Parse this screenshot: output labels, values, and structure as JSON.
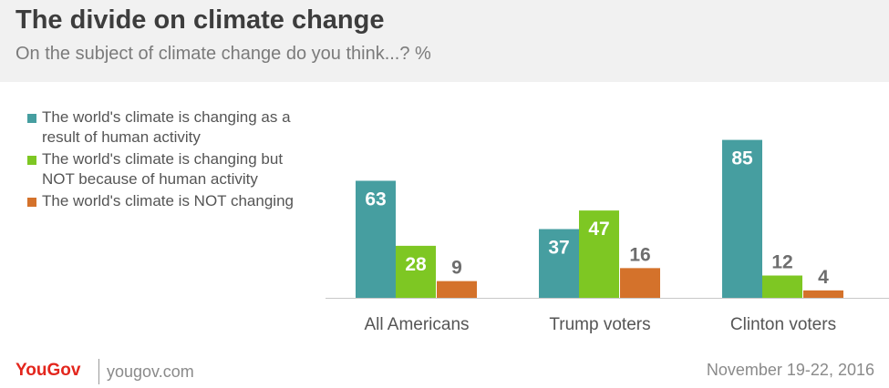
{
  "header": {
    "title": "The divide on climate change",
    "subtitle": "On the subject of climate change do you think...? %"
  },
  "footer": {
    "logo": "YouGov",
    "url": "yougov.com",
    "date": "November 19-22, 2016"
  },
  "chart_data": {
    "type": "bar",
    "categories": [
      "All Americans",
      "Trump voters",
      "Clinton voters"
    ],
    "series": [
      {
        "name": "The world's climate is changing as a result of human activity",
        "values": [
          63,
          37,
          85
        ],
        "color": "#469ea0"
      },
      {
        "name": "The world's climate is changing but NOT because of human activity",
        "values": [
          28,
          47,
          12
        ],
        "color": "#7ec723"
      },
      {
        "name": "The world's climate is NOT changing",
        "values": [
          9,
          16,
          4
        ],
        "color": "#d4722b"
      }
    ],
    "ylim": [
      0,
      100
    ],
    "grid": false,
    "legend": "left",
    "title": "",
    "xlabel": "",
    "ylabel": ""
  }
}
